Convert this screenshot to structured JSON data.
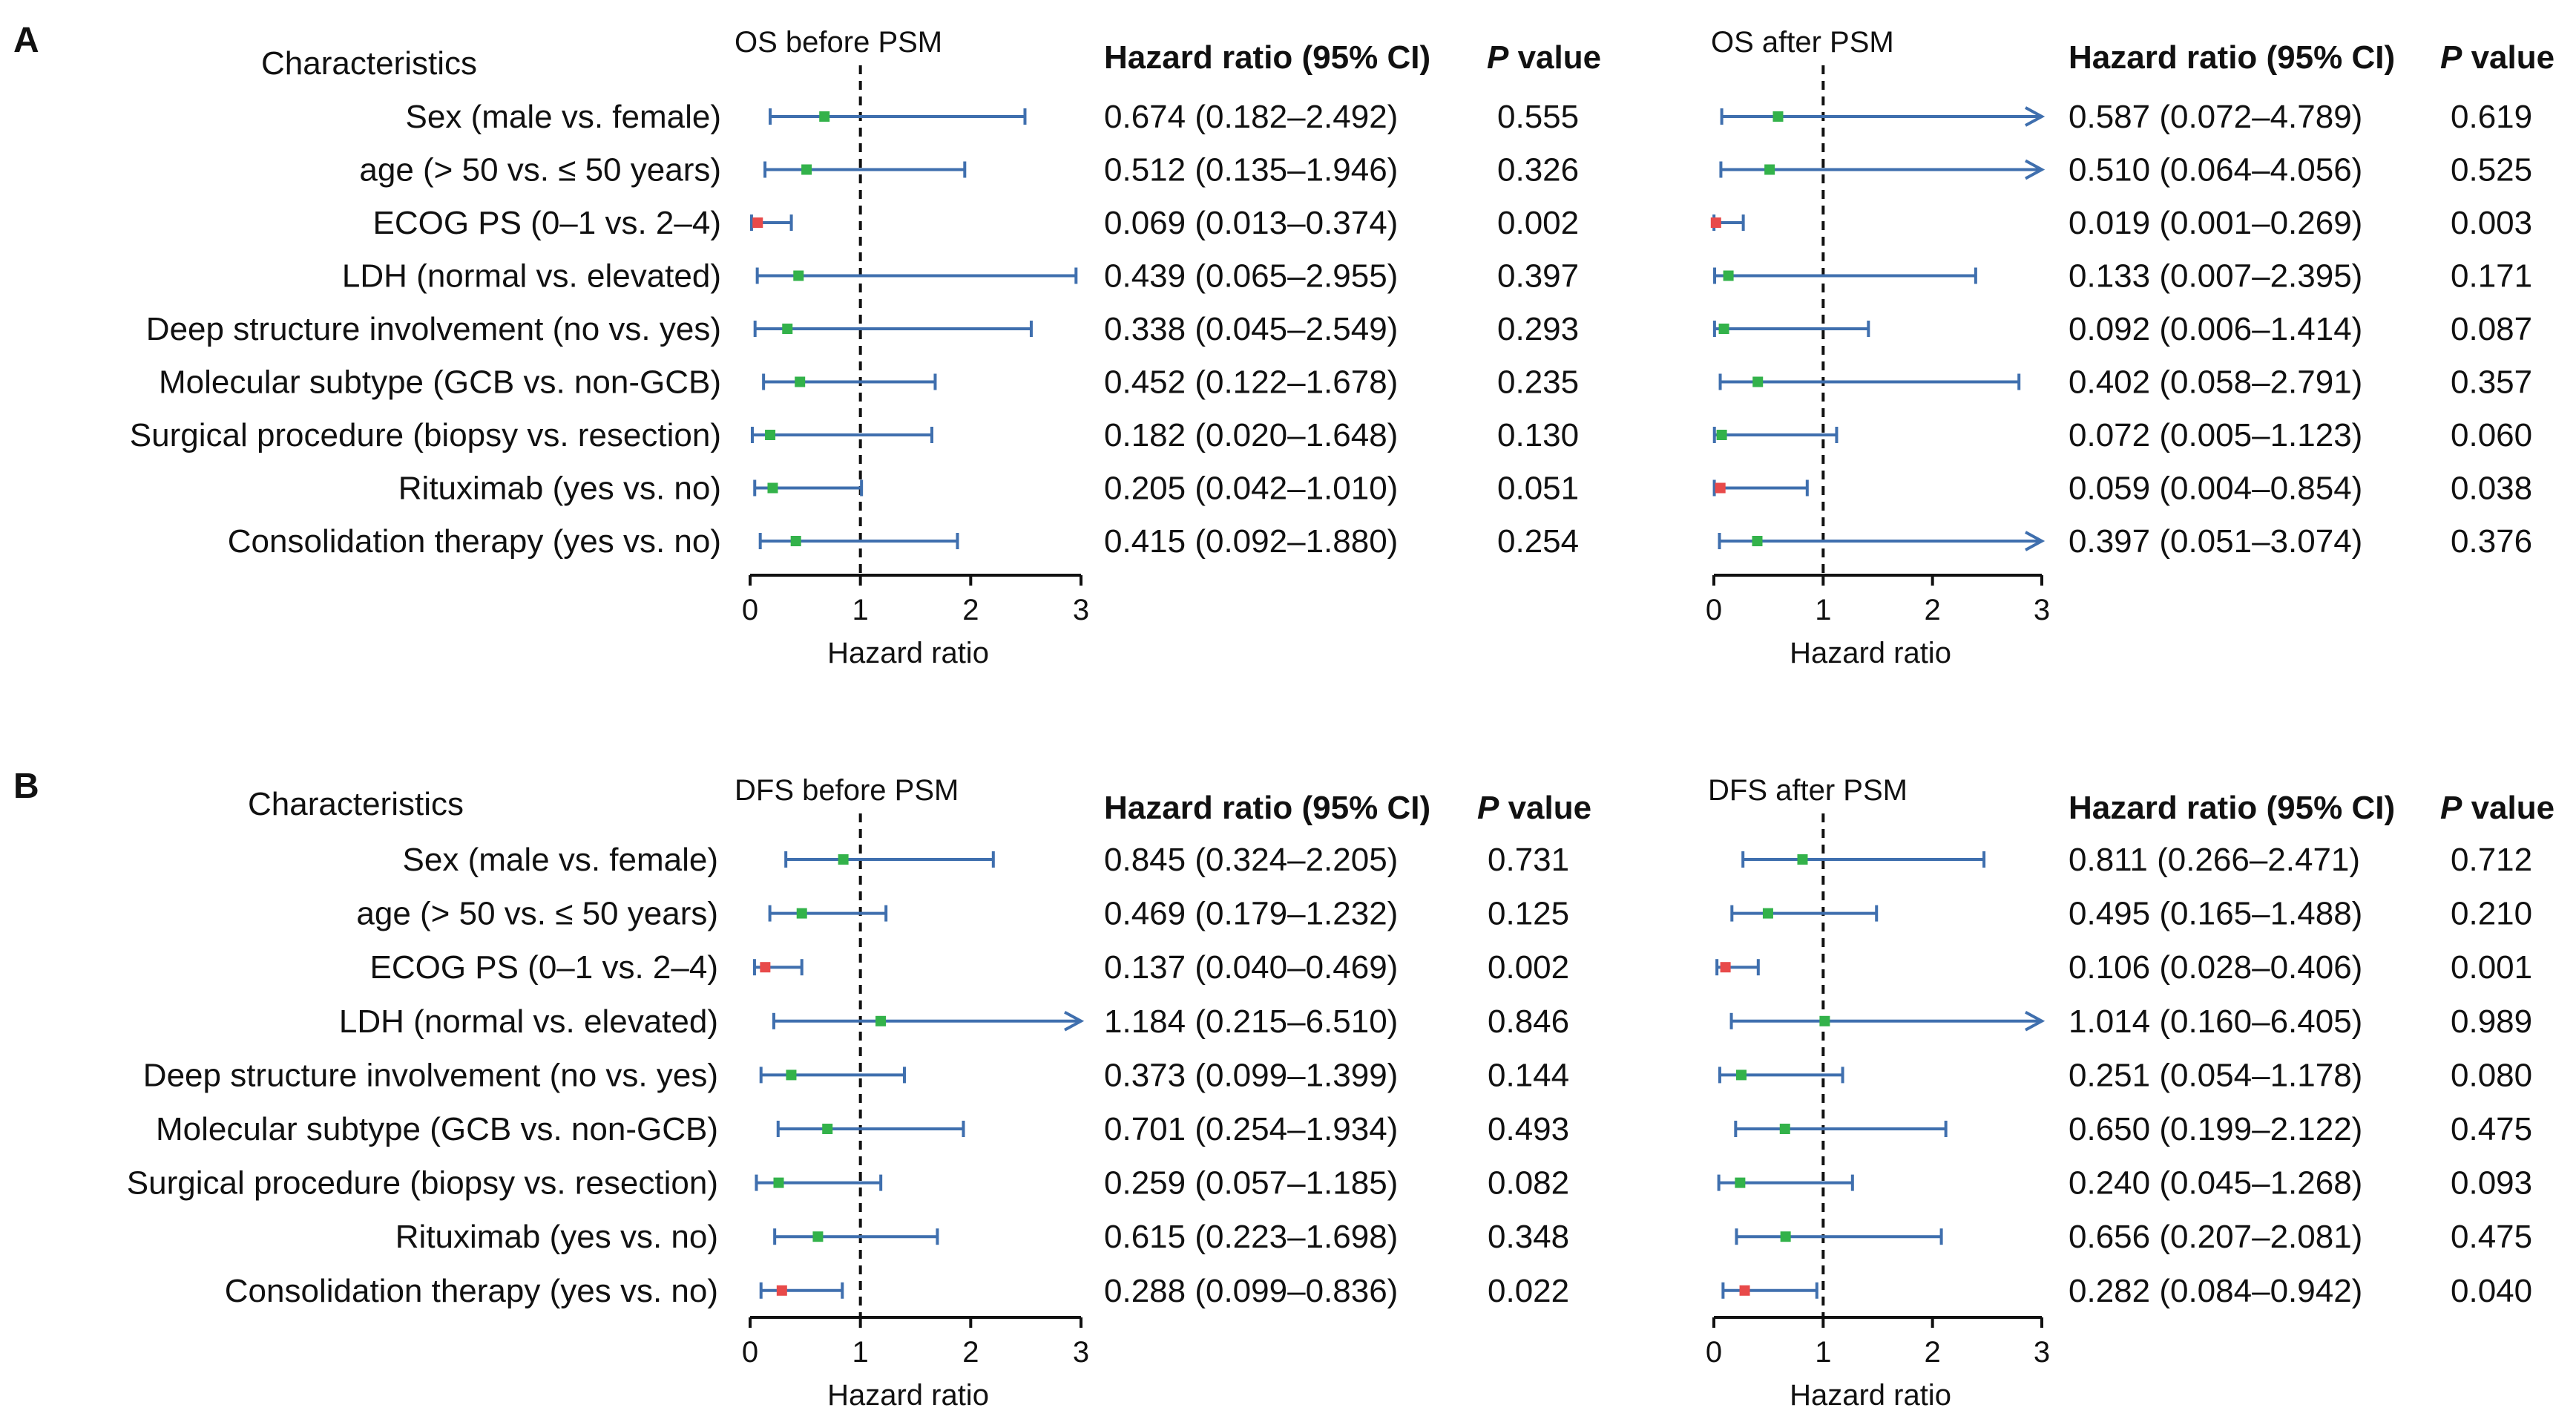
{
  "colors": {
    "ci_line": "#3f6fae",
    "point_nonsig": "#33b24a",
    "point_sig": "#e84a4a",
    "ref_line": "#111111",
    "text": "#111111"
  },
  "chart_data": [
    {
      "type": "forest",
      "panel_letter": "A",
      "characteristics_header": "Characteristics",
      "rows": [
        "Sex (male vs. female)",
        "age (> 50 vs. ≤ 50 years)",
        "ECOG PS (0–1 vs. 2–4)",
        "LDH (normal vs. elevated)",
        "Deep structure involvement (no vs. yes)",
        "Molecular subtype (GCB vs. non-GCB)",
        "Surgical procedure (biopsy vs. resection)",
        "Rituximab (yes vs. no)",
        "Consolidation therapy (yes vs. no)"
      ],
      "plots": [
        {
          "title": "OS before PSM",
          "xlabel": "Hazard ratio",
          "xlim": [
            0,
            3
          ],
          "xticks": [
            "0",
            "1",
            "2",
            "3"
          ],
          "ref_line": 1,
          "hr_header": "Hazard ratio (95% CI)",
          "p_header_italic": "P",
          "p_header_rest": " value",
          "hr": [
            0.674,
            0.512,
            0.069,
            0.439,
            0.338,
            0.452,
            0.182,
            0.205,
            0.415
          ],
          "lower": [
            0.182,
            0.135,
            0.013,
            0.065,
            0.045,
            0.122,
            0.02,
            0.042,
            0.092
          ],
          "upper": [
            2.492,
            1.946,
            0.374,
            2.955,
            2.549,
            1.678,
            1.648,
            1.01,
            1.88
          ],
          "p": [
            0.555,
            0.326,
            0.002,
            0.397,
            0.293,
            0.235,
            0.13,
            0.051,
            0.254
          ],
          "hr_text": [
            "0.674 (0.182–2.492)",
            "0.512 (0.135–1.946)",
            "0.069 (0.013–0.374)",
            "0.439 (0.065–2.955)",
            "0.338 (0.045–2.549)",
            "0.452 (0.122–1.678)",
            "0.182 (0.020–1.648)",
            "0.205 (0.042–1.010)",
            "0.415 (0.092–1.880)"
          ],
          "p_text": [
            "0.555",
            "0.326",
            "0.002",
            "0.397",
            "0.293",
            "0.235",
            "0.130",
            "0.051",
            "0.254"
          ]
        },
        {
          "title": "OS after PSM",
          "xlabel": "Hazard ratio",
          "xlim": [
            0,
            3
          ],
          "xticks": [
            "0",
            "1",
            "2",
            "3"
          ],
          "ref_line": 1,
          "hr_header": "Hazard ratio (95% CI)",
          "p_header_italic": "P",
          "p_header_rest": " value",
          "hr": [
            0.587,
            0.51,
            0.019,
            0.133,
            0.092,
            0.402,
            0.072,
            0.059,
            0.397
          ],
          "lower": [
            0.072,
            0.064,
            0.001,
            0.007,
            0.006,
            0.058,
            0.005,
            0.004,
            0.051
          ],
          "upper": [
            4.789,
            4.056,
            0.269,
            2.395,
            1.414,
            2.791,
            1.123,
            0.854,
            3.074
          ],
          "p": [
            0.619,
            0.525,
            0.003,
            0.171,
            0.087,
            0.357,
            0.06,
            0.038,
            0.376
          ],
          "hr_text": [
            "0.587 (0.072–4.789)",
            "0.510 (0.064–4.056)",
            "0.019 (0.001–0.269)",
            "0.133 (0.007–2.395)",
            "0.092 (0.006–1.414)",
            "0.402 (0.058–2.791)",
            "0.072 (0.005–1.123)",
            "0.059 (0.004–0.854)",
            "0.397 (0.051–3.074)"
          ],
          "p_text": [
            "0.619",
            "0.525",
            "0.003",
            "0.171",
            "0.087",
            "0.357",
            "0.060",
            "0.038",
            "0.376"
          ]
        }
      ]
    },
    {
      "type": "forest",
      "panel_letter": "B",
      "characteristics_header": "Characteristics",
      "rows": [
        "Sex (male vs. female)",
        "age (> 50 vs. ≤ 50 years)",
        "ECOG PS (0–1 vs. 2–4)",
        "LDH (normal vs. elevated)",
        "Deep structure involvement (no vs. yes)",
        "Molecular subtype (GCB vs. non-GCB)",
        "Surgical procedure (biopsy vs. resection)",
        "Rituximab (yes vs. no)",
        "Consolidation therapy (yes vs. no)"
      ],
      "plots": [
        {
          "title": "DFS before PSM",
          "xlabel": "Hazard ratio",
          "xlim": [
            0,
            3
          ],
          "xticks": [
            "0",
            "1",
            "2",
            "3"
          ],
          "ref_line": 1,
          "hr_header": "Hazard ratio (95% CI)",
          "p_header_italic": "P",
          "p_header_rest": " value",
          "hr": [
            0.845,
            0.469,
            0.137,
            1.184,
            0.373,
            0.701,
            0.259,
            0.615,
            0.288
          ],
          "lower": [
            0.324,
            0.179,
            0.04,
            0.215,
            0.099,
            0.254,
            0.057,
            0.223,
            0.099
          ],
          "upper": [
            2.205,
            1.232,
            0.469,
            6.51,
            1.399,
            1.934,
            1.185,
            1.698,
            0.836
          ],
          "p": [
            0.731,
            0.125,
            0.002,
            0.846,
            0.144,
            0.493,
            0.082,
            0.348,
            0.022
          ],
          "hr_text": [
            "0.845 (0.324–2.205)",
            "0.469 (0.179–1.232)",
            "0.137 (0.040–0.469)",
            "1.184 (0.215–6.510)",
            "0.373 (0.099–1.399)",
            "0.701 (0.254–1.934)",
            "0.259 (0.057–1.185)",
            "0.615 (0.223–1.698)",
            "0.288 (0.099–0.836)"
          ],
          "p_text": [
            "0.731",
            "0.125",
            "0.002",
            "0.846",
            "0.144",
            "0.493",
            "0.082",
            "0.348",
            "0.022"
          ]
        },
        {
          "title": "DFS after PSM",
          "xlabel": "Hazard ratio",
          "xlim": [
            0,
            3
          ],
          "xticks": [
            "0",
            "1",
            "2",
            "3"
          ],
          "ref_line": 1,
          "hr_header": "Hazard ratio (95% CI)",
          "p_header_italic": "P",
          "p_header_rest": " value",
          "hr": [
            0.811,
            0.495,
            0.106,
            1.014,
            0.251,
            0.65,
            0.24,
            0.656,
            0.282
          ],
          "lower": [
            0.266,
            0.165,
            0.028,
            0.16,
            0.054,
            0.199,
            0.045,
            0.207,
            0.084
          ],
          "upper": [
            2.471,
            1.488,
            0.406,
            6.405,
            1.178,
            2.122,
            1.268,
            2.081,
            0.942
          ],
          "p": [
            0.712,
            0.21,
            0.001,
            0.989,
            0.08,
            0.475,
            0.093,
            0.475,
            0.04
          ],
          "hr_text": [
            "0.811 (0.266–2.471)",
            "0.495 (0.165–1.488)",
            "0.106 (0.028–0.406)",
            "1.014 (0.160–6.405)",
            "0.251 (0.054–1.178)",
            "0.650 (0.199–2.122)",
            "0.240 (0.045–1.268)",
            "0.656 (0.207–2.081)",
            "0.282 (0.084–0.942)"
          ],
          "p_text": [
            "0.712",
            "0.210",
            "0.001",
            "0.989",
            "0.080",
            "0.475",
            "0.093",
            "0.475",
            "0.040"
          ]
        }
      ]
    }
  ]
}
